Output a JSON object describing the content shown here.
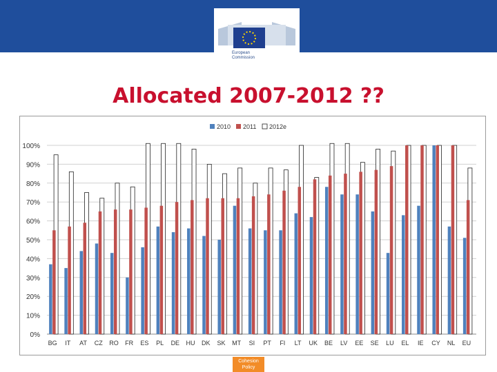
{
  "header": {
    "logo_line1": "European",
    "logo_line2": "Commission"
  },
  "slide_title": "Allocated 2007-2012 ??",
  "footer": {
    "badge_line1": "Cohesion",
    "badge_line2": "Policy"
  },
  "colors": {
    "topbar": "#1f4e9c",
    "title": "#c8102e",
    "series_2010": "#4f81bd",
    "series_2011": "#c0504d",
    "series_2012e": "#ffffff",
    "badge": "#f28c28"
  },
  "chart_data": {
    "type": "bar",
    "categories": [
      "BG",
      "IT",
      "AT",
      "CZ",
      "RO",
      "FR",
      "ES",
      "PL",
      "DE",
      "HU",
      "DK",
      "SK",
      "MT",
      "SI",
      "PT",
      "FI",
      "LT",
      "UK",
      "BE",
      "LV",
      "EE",
      "SE",
      "LU",
      "EL",
      "IE",
      "CY",
      "NL",
      "EU"
    ],
    "series": [
      {
        "name": "2010",
        "values": [
          37,
          35,
          44,
          48,
          43,
          30,
          46,
          57,
          54,
          56,
          52,
          50,
          68,
          56,
          55,
          55,
          64,
          62,
          78,
          74,
          74,
          65,
          43,
          63,
          68,
          100,
          57,
          51
        ]
      },
      {
        "name": "2011",
        "values": [
          55,
          57,
          59,
          65,
          66,
          66,
          67,
          68,
          70,
          71,
          72,
          72,
          72,
          73,
          74,
          76,
          78,
          82,
          84,
          85,
          86,
          87,
          89,
          100,
          100,
          100,
          100,
          71
        ]
      },
      {
        "name": "2012e",
        "values": [
          95,
          86,
          75,
          72,
          80,
          78,
          101,
          101,
          101,
          98,
          90,
          85,
          88,
          80,
          88,
          87,
          100,
          83,
          101,
          101,
          91,
          98,
          97,
          100,
          100,
          100,
          100,
          88
        ]
      }
    ],
    "yticks": [
      "0%",
      "10%",
      "20%",
      "30%",
      "40%",
      "50%",
      "60%",
      "70%",
      "80%",
      "90%",
      "100%"
    ],
    "ylim": [
      0,
      100
    ],
    "grid": true,
    "legend": "top"
  }
}
